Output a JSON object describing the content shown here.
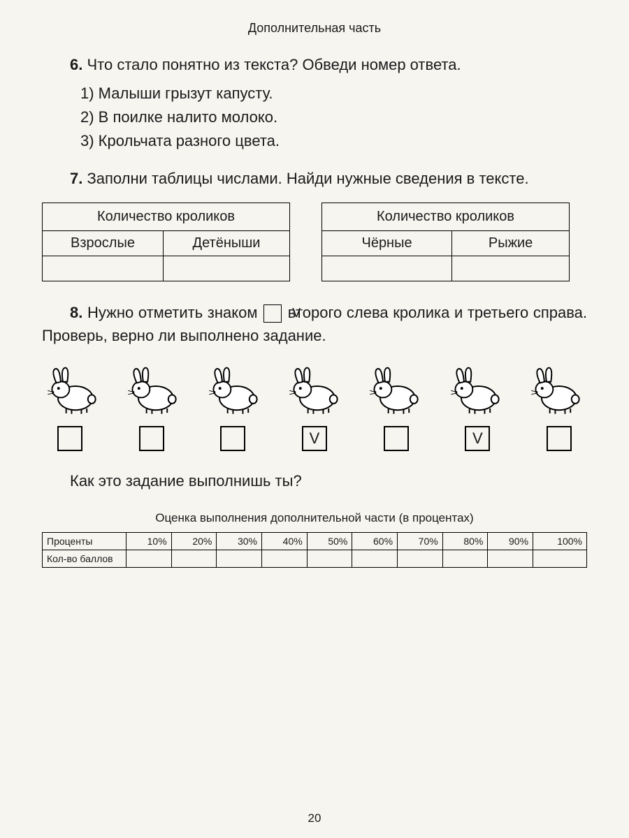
{
  "section_title": "Дополнительная часть",
  "task6": {
    "num": "6.",
    "text": "Что стало понятно из текста? Обведи номер ответа.",
    "options": [
      "1)  Малыши  грызут  капусту.",
      "2)  В  поилке  налито  молоко.",
      "3)  Крольчата  разного  цвета."
    ]
  },
  "task7": {
    "num": "7.",
    "text": "Заполни таблицы числами. Найди нужные сведения в тексте.",
    "table1": {
      "title": "Количество  кроликов",
      "cols": [
        "Взрослые",
        "Детёныши"
      ]
    },
    "table2": {
      "title": "Количество  кроликов",
      "cols": [
        "Чёрные",
        "Рыжие"
      ]
    }
  },
  "task8": {
    "num": "8.",
    "text_before": "Нужно отметить знаком ",
    "vmark": "V",
    "text_after": " второго слева кролика и третьего справа. Проверь, верно ли выполнено задание.",
    "rabbit_count": 7,
    "checks": [
      "",
      "",
      "",
      "V",
      "",
      "V",
      ""
    ],
    "followup": "Как  это  задание  выполнишь  ты?"
  },
  "evaluation": {
    "title": "Оценка выполнения дополнительной части (в процентах)",
    "row1_label": "Проценты",
    "percents": [
      "10%",
      "20%",
      "30%",
      "40%",
      "50%",
      "60%",
      "70%",
      "80%",
      "90%",
      "100%"
    ],
    "row2_label": "Кол-во баллов"
  },
  "page_number": "20"
}
